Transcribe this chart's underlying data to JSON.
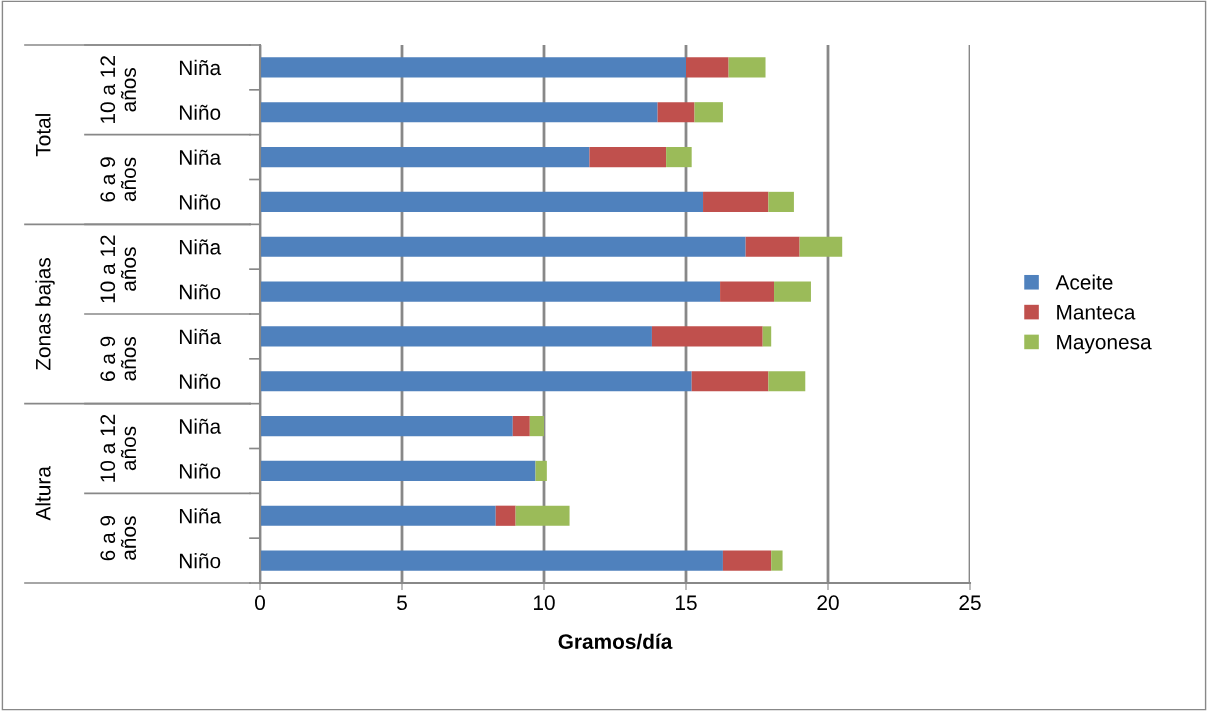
{
  "chart_data": {
    "type": "bar",
    "orientation": "horizontal",
    "stacked": true,
    "xlabel": "Gramos/día",
    "categories": [
      "Niña",
      "Niño",
      "Niña",
      "Niño",
      "Niña",
      "Niño",
      "Niña",
      "Niño",
      "Niña",
      "Niño",
      "Niña",
      "Niño"
    ],
    "annotations": [
      "10 a 12 años",
      "6 a 9 años",
      "10 a 12 años",
      "6 a 9 años",
      "10 a 12 años",
      "6 a 9 años",
      "Total",
      "Zonas bajas",
      "Altura"
    ],
    "series": [
      {
        "name": "Aceite",
        "color": "#4f81bd",
        "values": [
          15.0,
          14.0,
          11.6,
          15.6,
          17.1,
          16.2,
          13.8,
          15.2,
          8.9,
          9.7,
          8.3,
          16.3
        ]
      },
      {
        "name": "Manteca",
        "color": "#c0504d",
        "values": [
          1.5,
          1.3,
          2.7,
          2.3,
          1.9,
          1.9,
          3.9,
          2.7,
          0.6,
          0,
          0.7,
          1.7
        ]
      },
      {
        "name": "Mayonesa",
        "color": "#9bbb59",
        "values": [
          1.3,
          1.0,
          0.9,
          0.9,
          1.5,
          1.3,
          0.3,
          1.3,
          0.5,
          0.4,
          1.9,
          0.4
        ]
      }
    ],
    "xlim": [
      0,
      25
    ],
    "xticks": [
      0,
      5,
      10,
      15,
      20,
      25
    ],
    "grid": "x",
    "legend": "right"
  }
}
